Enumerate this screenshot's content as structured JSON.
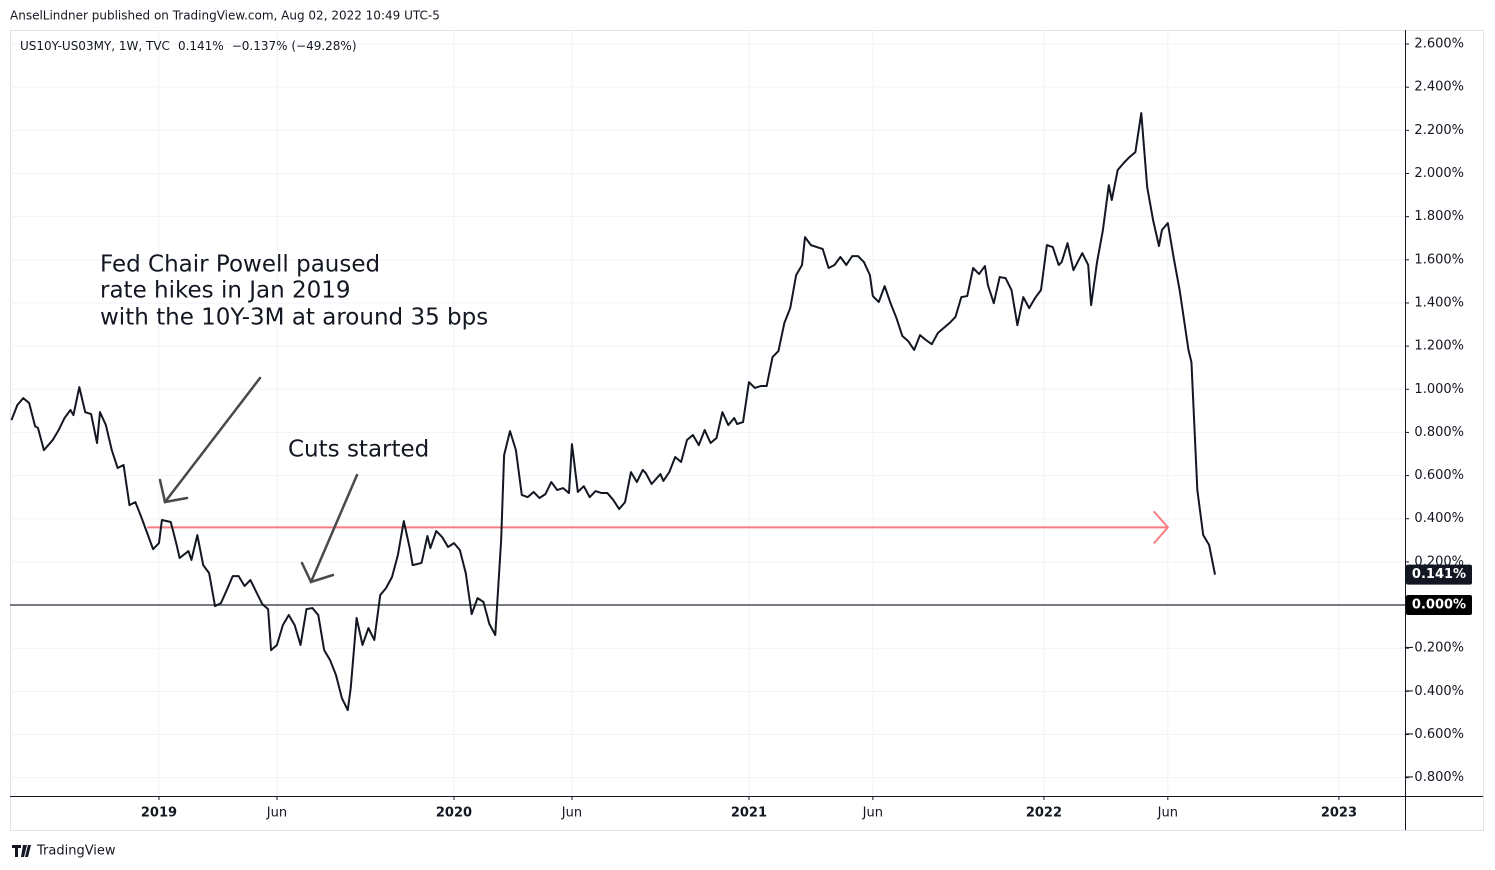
{
  "header": {
    "publisher": "AnselLindner published on TradingView.com, Aug 02, 2022 10:49 UTC-5"
  },
  "footer": {
    "brand": "TradingView"
  },
  "chart_data": {
    "type": "line",
    "legend": {
      "symbol": "US10Y-US03MY, 1W, TVC",
      "last": "0.141%",
      "change": "−0.137% (−49.28%)"
    },
    "color": "#131722",
    "last_value_label": "0.141%",
    "annotations": [
      "Fed Chair Powell paused",
      "rate hikes in Jan 2019",
      "with the 10Y-3M at around 35 bps",
      "Cuts started"
    ],
    "hlines": [
      {
        "value": 0,
        "label": "0.000%",
        "color": "#787b86"
      },
      {
        "value": 0.36,
        "x": [
          2018.96,
          2022.42
        ],
        "color": "#f77c80"
      }
    ],
    "grid": true,
    "xlim": [
      2018.495,
      2023.224
    ],
    "ylim": [
      -0.885,
      2.665
    ],
    "xticks": [
      2019,
      {
        "value": 2019.4,
        "label": "Jun"
      },
      2020,
      {
        "value": 2020.4,
        "label": "Jun"
      },
      2021,
      {
        "value": 2021.42,
        "label": "Jun"
      },
      2022,
      {
        "value": 2022.42,
        "label": "Jun"
      },
      2023
    ],
    "yticks": [
      {
        "value": -0.8,
        "label": "−0.800%"
      },
      {
        "value": -0.6,
        "label": "−0.600%"
      },
      {
        "value": -0.4,
        "label": "−0.400%"
      },
      {
        "value": -0.2,
        "label": "−0.200%"
      },
      {
        "value": 0.2,
        "label": "0.200%"
      },
      {
        "value": 0.4,
        "label": "0.400%"
      },
      {
        "value": 0.6,
        "label": "0.600%"
      },
      {
        "value": 0.8,
        "label": "0.800%"
      },
      {
        "value": 1.0,
        "label": "1.000%"
      },
      {
        "value": 1.2,
        "label": "1.200%"
      },
      {
        "value": 1.4,
        "label": "1.400%"
      },
      {
        "value": 1.6,
        "label": "1.600%"
      },
      {
        "value": 1.8,
        "label": "1.800%"
      },
      {
        "value": 2.0,
        "label": "2.000%"
      },
      {
        "value": 2.2,
        "label": "2.200%"
      },
      {
        "value": 2.4,
        "label": "2.400%"
      },
      {
        "value": 2.6,
        "label": "2.600%"
      }
    ],
    "x": [
      2018.5,
      2018.52,
      2018.54,
      2018.56,
      2018.58,
      2018.59,
      2018.61,
      2018.64,
      2018.66,
      2018.68,
      2018.7,
      2018.71,
      2018.73,
      2018.75,
      2018.77,
      2018.79,
      2018.8,
      2018.82,
      2018.84,
      2018.86,
      2018.88,
      2018.9,
      2018.92,
      2018.94,
      2018.96,
      2018.98,
      2019.0,
      2019.01,
      2019.04,
      2019.06,
      2019.07,
      2019.1,
      2019.11,
      2019.13,
      2019.15,
      2019.17,
      2019.19,
      2019.21,
      2019.23,
      2019.25,
      2019.27,
      2019.29,
      2019.31,
      2019.33,
      2019.35,
      2019.37,
      2019.38,
      2019.4,
      2019.42,
      2019.44,
      2019.46,
      2019.48,
      2019.5,
      2019.52,
      2019.54,
      2019.56,
      2019.58,
      2019.6,
      2019.62,
      2019.64,
      2019.65,
      2019.67,
      2019.69,
      2019.71,
      2019.73,
      2019.75,
      2019.77,
      2019.79,
      2019.81,
      2019.83,
      2019.85,
      2019.86,
      2019.89,
      2019.91,
      2019.92,
      2019.94,
      2019.96,
      2019.98,
      2020.0,
      2020.02,
      2020.04,
      2020.06,
      2020.08,
      2020.1,
      2020.12,
      2020.14,
      2020.16,
      2020.17,
      2020.19,
      2020.21,
      2020.23,
      2020.25,
      2020.27,
      2020.29,
      2020.31,
      2020.33,
      2020.35,
      2020.37,
      2020.39,
      2020.4,
      2020.42,
      2020.44,
      2020.46,
      2020.48,
      2020.5,
      2020.52,
      2020.54,
      2020.56,
      2020.58,
      2020.6,
      2020.62,
      2020.64,
      2020.65,
      2020.67,
      2020.7,
      2020.71,
      2020.73,
      2020.75,
      2020.77,
      2020.79,
      2020.81,
      2020.83,
      2020.85,
      2020.87,
      2020.89,
      2020.91,
      2020.93,
      2020.95,
      2020.96,
      2020.98,
      2021.0,
      2021.02,
      2021.04,
      2021.06,
      2021.08,
      2021.1,
      2021.12,
      2021.14,
      2021.16,
      2021.18,
      2021.19,
      2021.21,
      2021.23,
      2021.25,
      2021.27,
      2021.29,
      2021.31,
      2021.33,
      2021.35,
      2021.37,
      2021.39,
      2021.41,
      2021.42,
      2021.44,
      2021.46,
      2021.48,
      2021.5,
      2021.52,
      2021.54,
      2021.56,
      2021.58,
      2021.6,
      2021.62,
      2021.64,
      2021.66,
      2021.68,
      2021.7,
      2021.72,
      2021.74,
      2021.76,
      2021.78,
      2021.8,
      2021.81,
      2021.83,
      2021.85,
      2021.87,
      2021.89,
      2021.91,
      2021.93,
      2021.95,
      2021.97,
      2021.99,
      2022.01,
      2022.03,
      2022.05,
      2022.06,
      2022.08,
      2022.1,
      2022.13,
      2022.15,
      2022.16,
      2022.18,
      2022.2,
      2022.22,
      2022.23,
      2022.25,
      2022.27,
      2022.29,
      2022.31,
      2022.33,
      2022.35,
      2022.37,
      2022.39,
      2022.4,
      2022.42,
      2022.44,
      2022.46,
      2022.49,
      2022.5,
      2022.52,
      2022.54,
      2022.56,
      2022.58
    ],
    "values": [
      0.857,
      0.927,
      0.959,
      0.936,
      0.829,
      0.82,
      0.718,
      0.765,
      0.811,
      0.867,
      0.904,
      0.88,
      1.01,
      0.894,
      0.885,
      0.751,
      0.894,
      0.834,
      0.718,
      0.635,
      0.649,
      0.463,
      0.477,
      0.408,
      0.334,
      0.259,
      0.287,
      0.394,
      0.385,
      0.278,
      0.218,
      0.25,
      0.209,
      0.324,
      0.185,
      0.148,
      -0.005,
      0.009,
      0.07,
      0.134,
      0.134,
      0.088,
      0.116,
      0.06,
      0.005,
      -0.019,
      -0.209,
      -0.185,
      -0.093,
      -0.046,
      -0.093,
      -0.185,
      -0.019,
      -0.014,
      -0.046,
      -0.209,
      -0.255,
      -0.324,
      -0.431,
      -0.487,
      -0.385,
      -0.06,
      -0.185,
      -0.107,
      -0.162,
      0.046,
      0.079,
      0.13,
      0.232,
      0.389,
      0.264,
      0.185,
      0.195,
      0.32,
      0.264,
      0.343,
      0.315,
      0.269,
      0.287,
      0.255,
      0.148,
      -0.042,
      0.032,
      0.014,
      -0.088,
      -0.139,
      0.301,
      0.695,
      0.806,
      0.718,
      0.51,
      0.5,
      0.524,
      0.496,
      0.514,
      0.57,
      0.533,
      0.542,
      0.519,
      0.746,
      0.524,
      0.551,
      0.5,
      0.528,
      0.519,
      0.519,
      0.487,
      0.445,
      0.477,
      0.616,
      0.57,
      0.626,
      0.612,
      0.561,
      0.607,
      0.575,
      0.616,
      0.686,
      0.663,
      0.765,
      0.788,
      0.741,
      0.811,
      0.751,
      0.774,
      0.894,
      0.834,
      0.867,
      0.839,
      0.848,
      1.033,
      1.006,
      1.015,
      1.015,
      1.149,
      1.177,
      1.307,
      1.376,
      1.529,
      1.576,
      1.705,
      1.668,
      1.659,
      1.65,
      1.562,
      1.576,
      1.613,
      1.576,
      1.617,
      1.617,
      1.589,
      1.529,
      1.432,
      1.404,
      1.478,
      1.399,
      1.33,
      1.247,
      1.223,
      1.182,
      1.251,
      1.228,
      1.209,
      1.26,
      1.284,
      1.307,
      1.335,
      1.427,
      1.432,
      1.562,
      1.534,
      1.571,
      1.483,
      1.399,
      1.52,
      1.515,
      1.46,
      1.297,
      1.427,
      1.376,
      1.423,
      1.46,
      1.668,
      1.659,
      1.576,
      1.589,
      1.677,
      1.552,
      1.631,
      1.576,
      1.39,
      1.589,
      1.738,
      1.946,
      1.877,
      2.016,
      2.048,
      2.076,
      2.099,
      2.28,
      1.937,
      1.784,
      1.664,
      1.738,
      1.77,
      1.608,
      1.46,
      1.182,
      1.126,
      0.533,
      0.324,
      0.278,
      0.141
    ]
  }
}
